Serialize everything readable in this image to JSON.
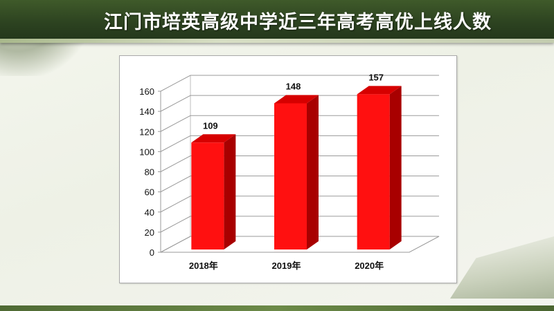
{
  "slide": {
    "title": "江门市培英高级中学近三年高考高优上线人数"
  },
  "colors": {
    "bar_front": "#ff1010",
    "bar_side": "#a80000",
    "bar_top": "#d60000",
    "title_bar": "#2c4220"
  },
  "chart_data": {
    "type": "bar",
    "categories": [
      "2018年",
      "2019年",
      "2020年"
    ],
    "values": [
      109,
      148,
      157
    ],
    "data_labels": [
      "109",
      "148",
      "157"
    ],
    "title": "",
    "xlabel": "",
    "ylabel": "",
    "ylim": [
      0,
      160
    ],
    "yticks": [
      0,
      20,
      40,
      60,
      80,
      100,
      120,
      140,
      160
    ],
    "grid": true,
    "legend": "none",
    "style": "3d"
  }
}
